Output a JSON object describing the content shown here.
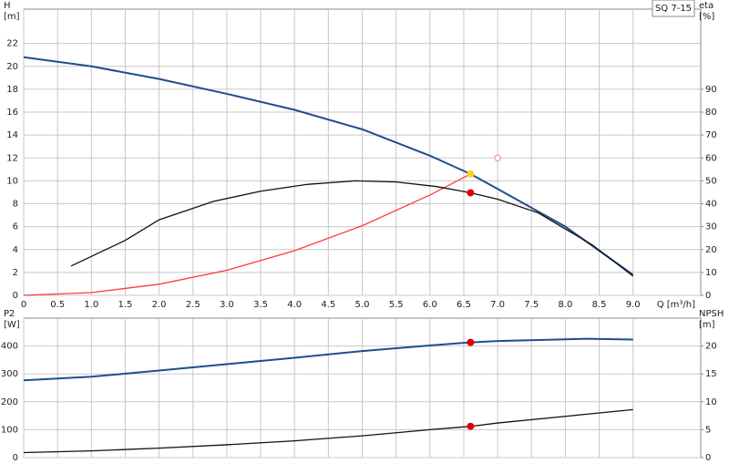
{
  "chart_data": [
    {
      "type": "line",
      "annotation": "SQ 7-15",
      "ylabel": "H",
      "yunit": "[m]",
      "y2label": "eta",
      "y2unit": "[%]",
      "xlabel": "Q [m³/h]",
      "xlim": [
        0,
        10
      ],
      "ylim": [
        0,
        25
      ],
      "y2lim": [
        0,
        125
      ],
      "grid": true,
      "xticks": [
        0,
        0.5,
        {
          "value": 1,
          "label": "1.0"
        },
        1.5,
        {
          "value": 2,
          "label": "2.0"
        },
        2.5,
        {
          "value": 3,
          "label": "3.0"
        },
        3.5,
        {
          "value": 4,
          "label": "4.0"
        },
        4.5,
        {
          "value": 5,
          "label": "5.0"
        },
        5.5,
        {
          "value": 6,
          "label": "6.0"
        },
        6.5,
        {
          "value": 7,
          "label": "7.0"
        },
        7.5,
        {
          "value": 8,
          "label": "8.0"
        },
        8.5,
        {
          "value": 9,
          "label": "9.0"
        }
      ],
      "yticks": [
        0,
        2,
        4,
        6,
        8,
        10,
        12,
        14,
        16,
        18,
        20,
        22
      ],
      "y2ticks": [
        0,
        10,
        20,
        30,
        40,
        50,
        60,
        70,
        80,
        90
      ],
      "series": [
        {
          "color": "#1f4e8c",
          "x": [
            0,
            1,
            2,
            3,
            4,
            5,
            6,
            6.6,
            7,
            8,
            9
          ],
          "values": [
            20.8,
            20.0,
            18.9,
            17.6,
            16.2,
            14.5,
            12.2,
            10.6,
            9.3,
            6.0,
            1.8
          ]
        },
        {
          "color": "#ff3b3b",
          "x": [
            0,
            1,
            2,
            3,
            4,
            5,
            6,
            6.6
          ],
          "values": [
            0,
            0.24,
            0.97,
            2.19,
            3.9,
            6.08,
            8.76,
            10.6
          ]
        },
        {
          "color": "#111111",
          "axis": "y2",
          "x": [
            0.7,
            1.5,
            2,
            2.8,
            3.5,
            4.2,
            4.9,
            5.5,
            6.1,
            6.6,
            7,
            7.6,
            8,
            8.4,
            9
          ],
          "values": [
            12.8,
            24,
            33,
            41,
            45.5,
            48.5,
            50,
            49.5,
            47.5,
            44.8,
            42,
            36,
            29,
            22,
            8.4
          ]
        }
      ],
      "points": [
        {
          "x": 6.6,
          "y": 10.6,
          "color": "#ffd21f"
        },
        {
          "x": 6.6,
          "y": 44.8,
          "axis": "y2",
          "color": "#e00000"
        },
        {
          "x": 7.0,
          "y": 12,
          "color": "#f08080",
          "marker": "open"
        }
      ]
    },
    {
      "type": "line",
      "ylabel": "P2",
      "yunit": "[W]",
      "y2label": "NPSH",
      "y2unit": "[m]",
      "xlim": [
        0,
        10
      ],
      "ylim": [
        0,
        500
      ],
      "y2lim": [
        0,
        25
      ],
      "grid": true,
      "xticks": [
        0,
        0.5,
        1,
        1.5,
        2,
        2.5,
        3,
        3.5,
        4,
        4.5,
        5,
        5.5,
        6,
        6.5,
        7,
        7.5,
        8,
        8.5,
        9
      ],
      "yticks": [
        0,
        100,
        200,
        300,
        400
      ],
      "y2ticks": [
        0,
        5,
        10,
        15,
        20
      ],
      "series": [
        {
          "color": "#1f4e8c",
          "x": [
            0,
            1,
            2,
            3,
            4,
            5,
            6,
            6.6,
            7,
            8,
            8.3,
            9
          ],
          "values": [
            277,
            290,
            312,
            335,
            358,
            382,
            402,
            413,
            418,
            424,
            426,
            423
          ]
        },
        {
          "color": "#111111",
          "axis": "y2",
          "x": [
            0,
            1,
            2,
            3,
            4,
            5,
            6,
            6.6,
            7,
            8,
            9
          ],
          "values": [
            0.9,
            1.2,
            1.7,
            2.3,
            3.0,
            3.9,
            5.0,
            5.6,
            6.2,
            7.4,
            8.6
          ]
        }
      ],
      "points": [
        {
          "x": 6.6,
          "y": 413,
          "color": "#e00000"
        },
        {
          "x": 6.6,
          "y": 5.6,
          "axis": "y2",
          "color": "#e00000"
        }
      ]
    }
  ]
}
